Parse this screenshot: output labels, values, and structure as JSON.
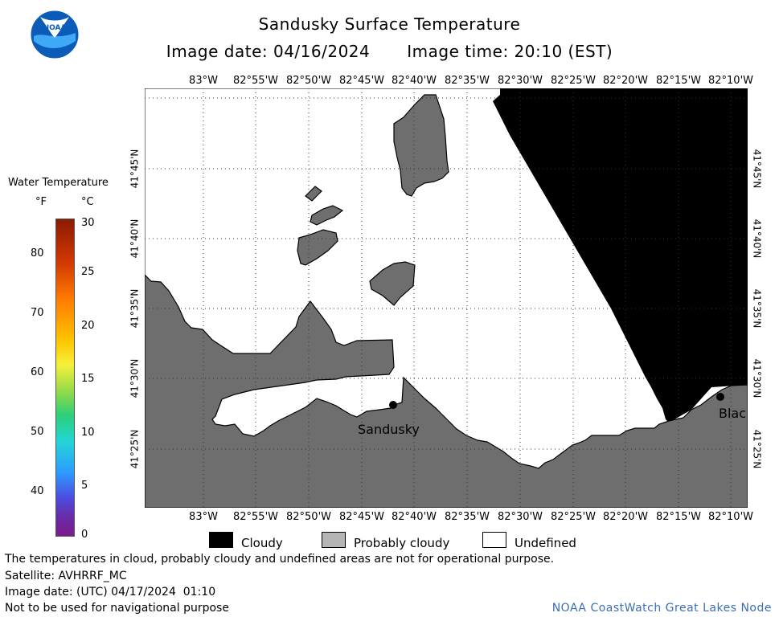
{
  "header": {
    "title": "Sandusky Surface Temperature",
    "image_date": "Image date: 04/16/2024",
    "image_time": "Image time: 20:10 (EST)"
  },
  "logo": {
    "text": "NOAA",
    "icon": "noaa-logo-icon"
  },
  "map": {
    "lon_labels": [
      "83°W",
      "82°55'W",
      "82°50'W",
      "82°45'W",
      "82°40'W",
      "82°35'W",
      "82°30'W",
      "82°25'W",
      "82°20'W",
      "82°15'W",
      "82°10'W"
    ],
    "lat_labels": [
      "41°45'N",
      "41°40'N",
      "41°35'N",
      "41°30'N",
      "41°25'N"
    ],
    "places": {
      "sandusky": "Sandusky",
      "blac": "Blac"
    },
    "colors": {
      "land": "#6e6e6e",
      "cloudy": "#000000",
      "undefined": "#ffffff"
    }
  },
  "colorbar": {
    "title": "Water Temperature",
    "unit_f": "°F",
    "unit_c": "°C",
    "f_ticks": [
      "80",
      "70",
      "60",
      "50",
      "40"
    ],
    "c_ticks": [
      "30",
      "25",
      "20",
      "15",
      "10",
      "5",
      "0"
    ]
  },
  "legend": {
    "cloudy": "Cloudy",
    "probably_cloudy": "Probably cloudy",
    "undefined": "Undefined"
  },
  "footer": {
    "disclaimer": "The temperatures in cloud, probably cloudy and undefined areas are not for operational purpose.",
    "satellite": "Satellite: AVHRRF_MC",
    "utc_date": "Image date: (UTC) 04/17/2024  01:10",
    "nav_warning": "Not to be used for navigational purpose",
    "credit": "NOAA CoastWatch Great Lakes Node"
  }
}
